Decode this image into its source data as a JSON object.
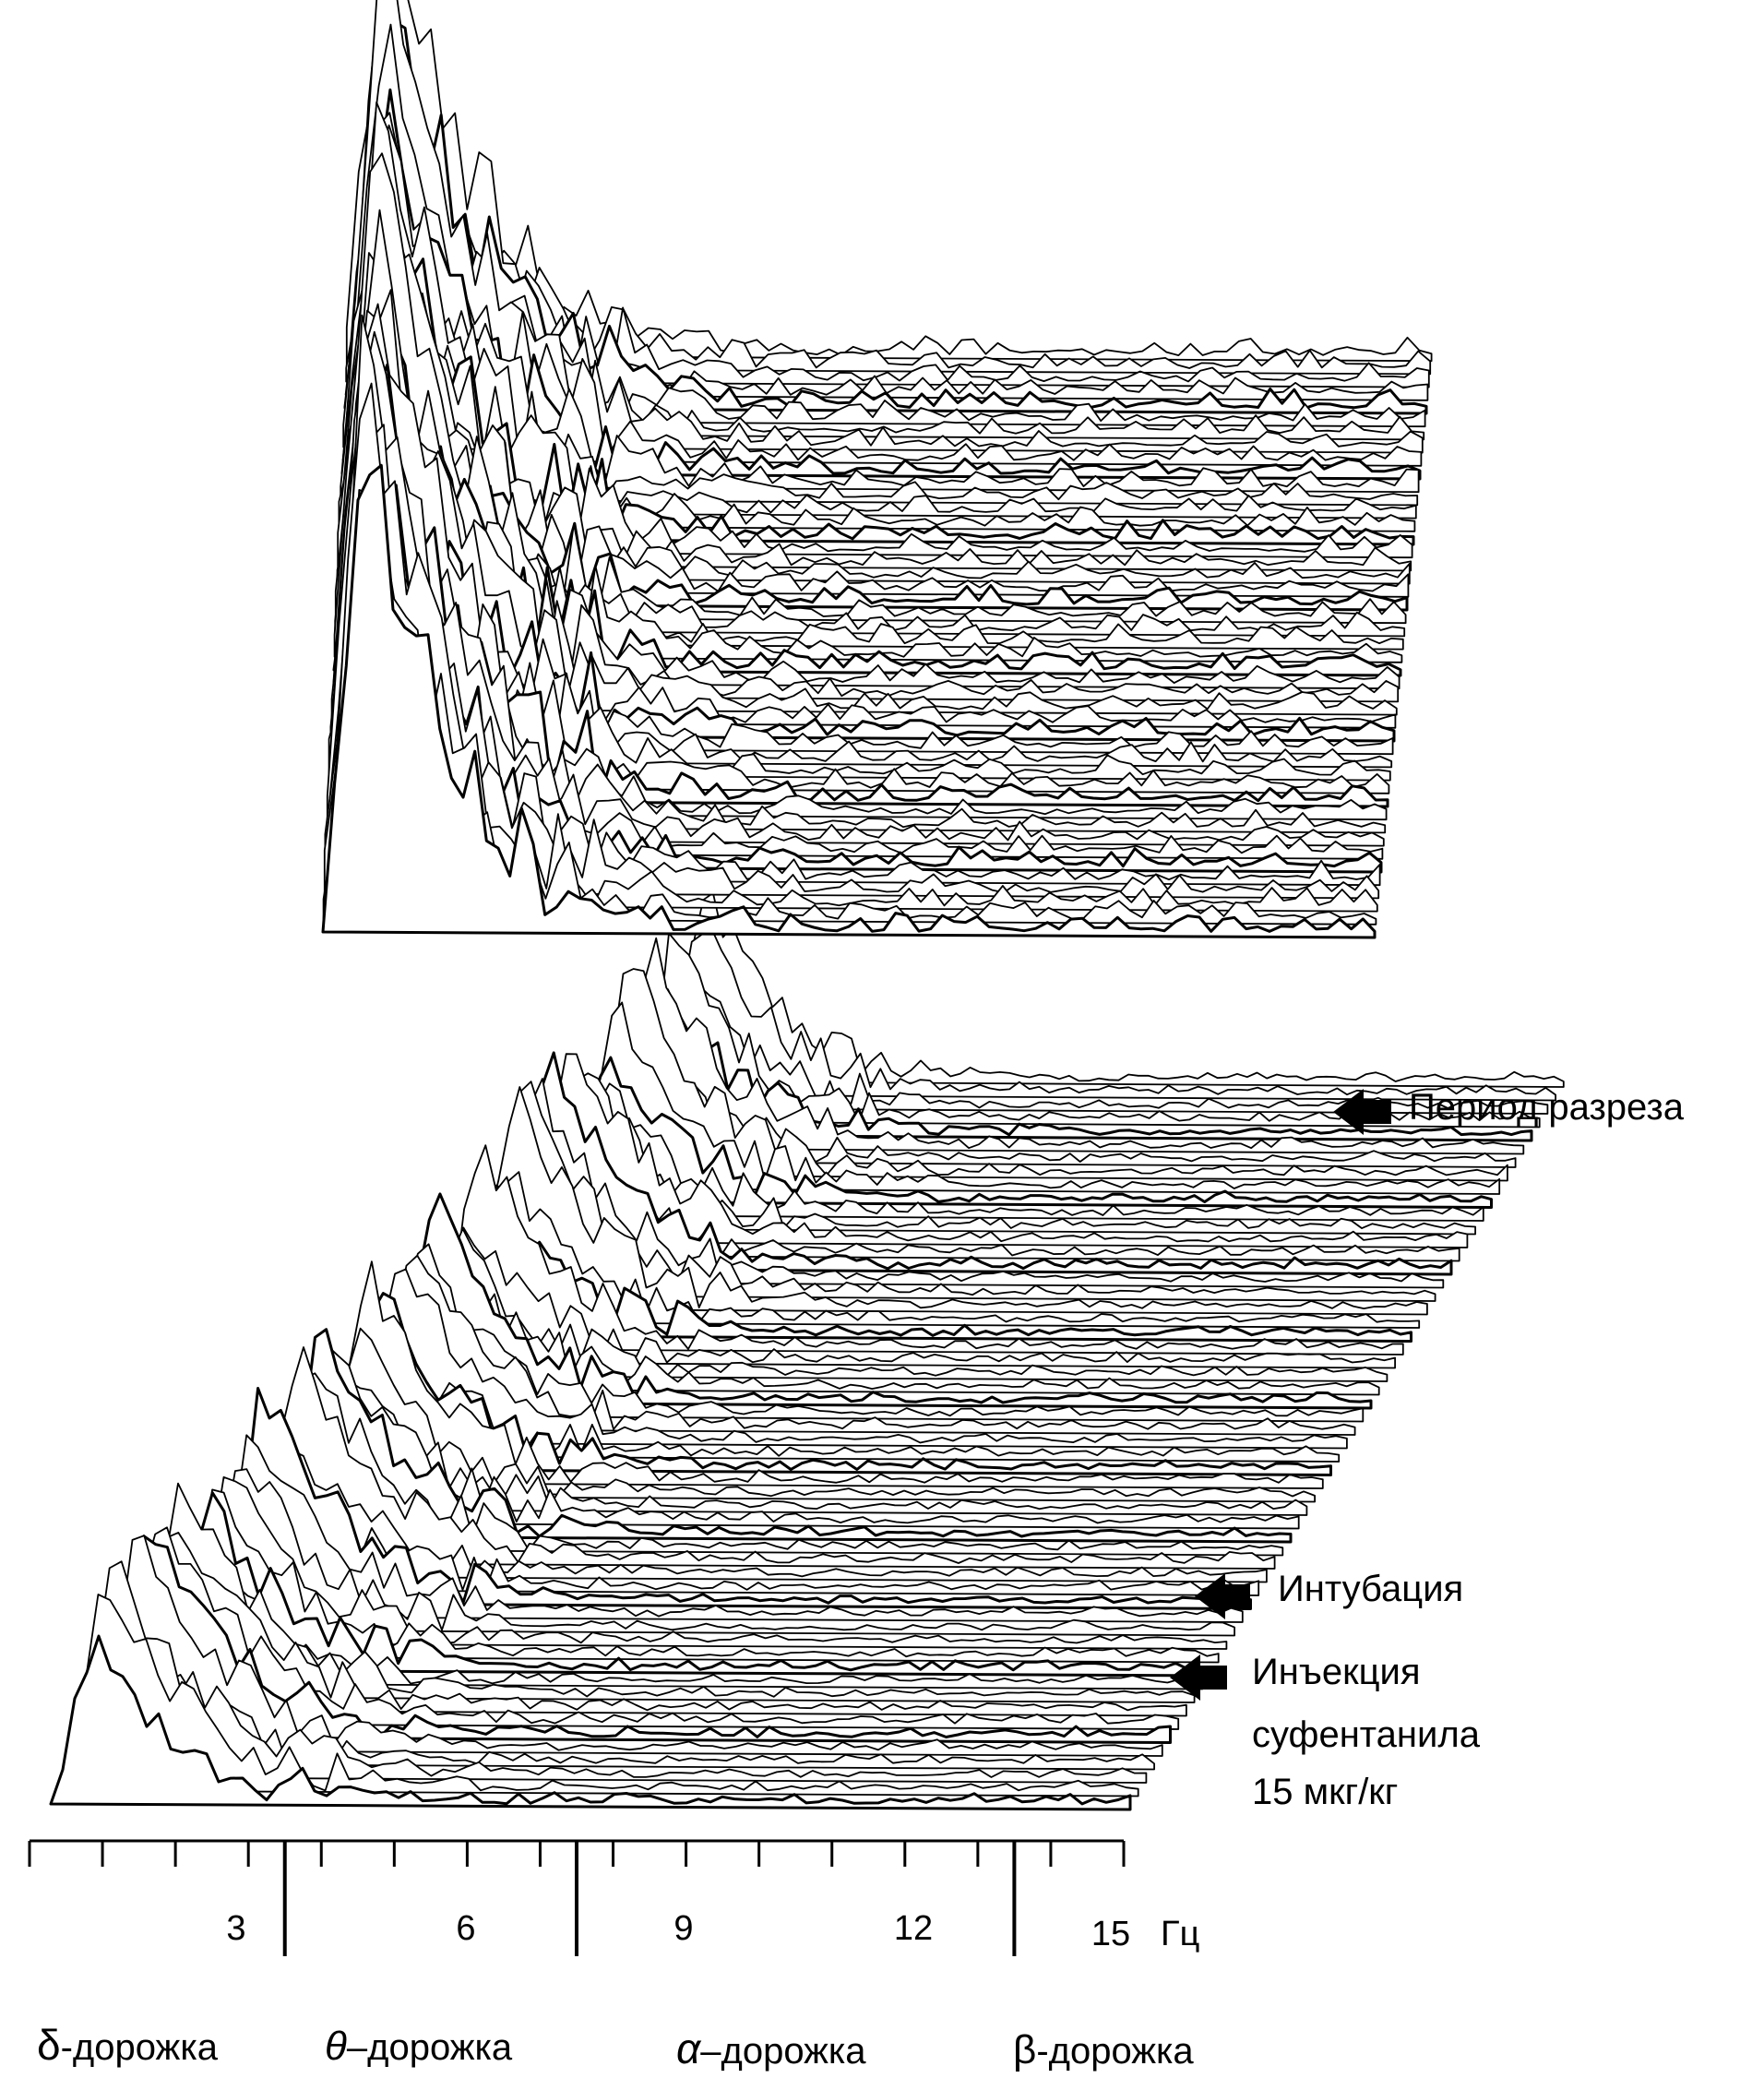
{
  "chart_data": {
    "type": "area",
    "title": "",
    "xlabel": "",
    "ylabel": "",
    "x_unit": "Гц",
    "x_ticks": [
      "3",
      "6",
      "9",
      "12",
      "15"
    ],
    "xlim": [
      0,
      15
    ],
    "band_boundaries_hz": [
      3.5,
      7.5,
      13.5
    ],
    "bands": [
      {
        "symbol": "δ",
        "label": "-дорожка"
      },
      {
        "symbol": "θ",
        "label": "–дорожка"
      },
      {
        "symbol": "α",
        "label": "–дорожка"
      },
      {
        "symbol": "β",
        "label": "-дорожка"
      }
    ],
    "events": [
      {
        "id": "injection",
        "lines": [
          "Инъекция",
          "суфентанила",
          "15 мкг/кг"
        ]
      },
      {
        "id": "intubation",
        "lines": [
          "Интубация"
        ]
      },
      {
        "id": "incision",
        "lines": [
          "Период разреза"
        ]
      }
    ],
    "panels": [
      {
        "id": "bottom",
        "spectra_count": 55,
        "peak_frequency_hz": 1.5
      },
      {
        "id": "top",
        "spectra_count": 45,
        "peak_frequency_hz": 1.5
      }
    ],
    "grid": false,
    "legend": "none",
    "line_color": "#000000",
    "fill_color": "#ffffff"
  }
}
